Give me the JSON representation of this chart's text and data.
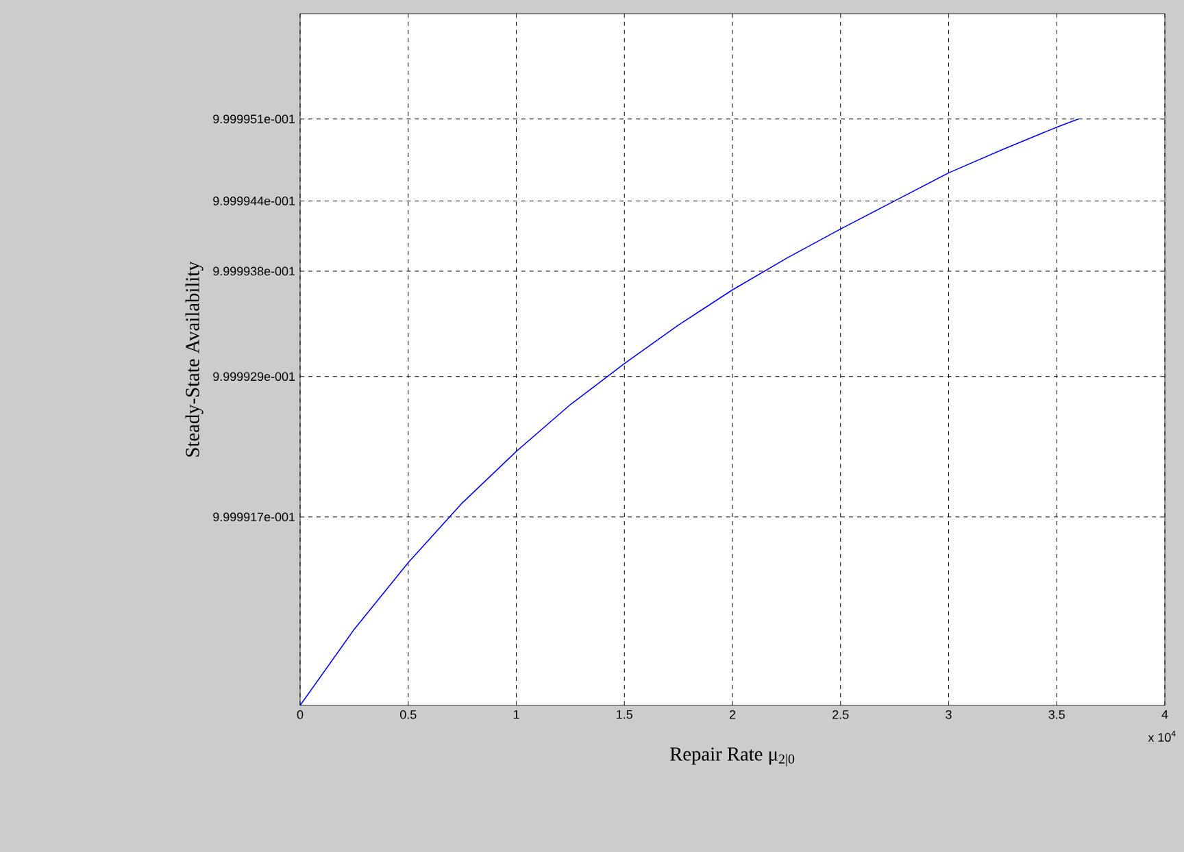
{
  "chart_data": {
    "type": "line",
    "xlabel": "Repair Rate μ$_{2|0}$",
    "ylabel": "Steady-State Availability",
    "annotations": [
      "x 10$^{4}$"
    ],
    "x": [
      0,
      0.25,
      0.5,
      0.75,
      1,
      1.25,
      1.5,
      1.75,
      2,
      2.25,
      2.5,
      2.75,
      3,
      3.25,
      3.5,
      3.6
    ],
    "series": [
      {
        "color": "#0000ff",
        "values": [
          0.99999009,
          0.99999074,
          0.99999131,
          0.99999182,
          0.99999226,
          0.99999266,
          0.99999301,
          0.99999334,
          0.99999364,
          0.99999391,
          0.99999416,
          0.9999944,
          0.99999464,
          0.99999484,
          0.99999503,
          0.9999951
        ]
      }
    ],
    "xlim": [
      0,
      4
    ],
    "xticks": [
      0,
      0.5,
      1,
      1.5,
      2,
      2.5,
      3,
      3.5,
      4
    ],
    "ylim": [
      0.99999009,
      0.999996
    ],
    "yticks": [
      {
        "value": 0.9999917,
        "label": "9.999917e-001"
      },
      {
        "value": 0.9999929,
        "label": "9.999929e-001"
      },
      {
        "value": 0.9999938,
        "label": "9.999938e-001"
      },
      {
        "value": 0.9999944,
        "label": "9.999944e-001"
      },
      {
        "value": 0.9999951,
        "label": "9.999951e-001"
      }
    ],
    "grid": true,
    "marker": "none",
    "line_style": "solid"
  }
}
